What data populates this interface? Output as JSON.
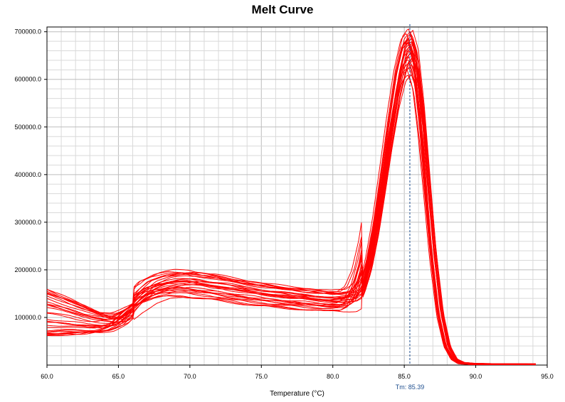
{
  "chart_data": {
    "type": "line",
    "title": "Melt Curve",
    "xlabel": "Temperature (°C)",
    "ylabel": "",
    "xlim": [
      60.0,
      95.0
    ],
    "ylim": [
      0,
      710000
    ],
    "x_ticks": [
      60.0,
      65.0,
      70.0,
      75.0,
      80.0,
      85.0,
      90.0,
      95.0
    ],
    "x_tick_labels": [
      "60.0",
      "65.0",
      "70.0",
      "75.0",
      "80.0",
      "85.0",
      "90.0",
      "95.0"
    ],
    "y_ticks": [
      100000,
      200000,
      300000,
      400000,
      500000,
      600000,
      700000
    ],
    "y_tick_labels": [
      "100000.0",
      "200000.0",
      "300000.0",
      "400000.0",
      "500000.0",
      "600000.0",
      "700000.0"
    ],
    "grid": true,
    "line_color": "#ff0000",
    "marker_line": {
      "x": 85.39,
      "label": "Tm: 85.39",
      "color": "#1f4f8f"
    },
    "representative_series": {
      "x": [
        60,
        61,
        62,
        63,
        64,
        65,
        66,
        67,
        68,
        69,
        70,
        71,
        72,
        73,
        74,
        75,
        76,
        77,
        78,
        79,
        80,
        81,
        81.5,
        82,
        82.5,
        83,
        83.5,
        84,
        84.5,
        85,
        85.4,
        85.8,
        86.2,
        86.6,
        87,
        87.5,
        88,
        88.5,
        89,
        90,
        91,
        92,
        93,
        94
      ],
      "y": [
        75000,
        76000,
        74000,
        72000,
        76000,
        90000,
        118000,
        138000,
        148000,
        152000,
        152000,
        148000,
        145000,
        140000,
        136000,
        132000,
        129000,
        126000,
        124000,
        121000,
        119000,
        121000,
        130000,
        158000,
        210000,
        290000,
        390000,
        495000,
        590000,
        655000,
        670000,
        630000,
        520000,
        380000,
        240000,
        110000,
        40000,
        12000,
        4000,
        2000,
        1500,
        1500,
        1200,
        1000
      ]
    },
    "curve_count": 30,
    "y_range_hint": {
      "baseline_low_min": 60000,
      "baseline_low_max": 165000,
      "hump_min": 135000,
      "hump_max": 200000,
      "peak_min": 610000,
      "peak_max": 710000
    }
  }
}
